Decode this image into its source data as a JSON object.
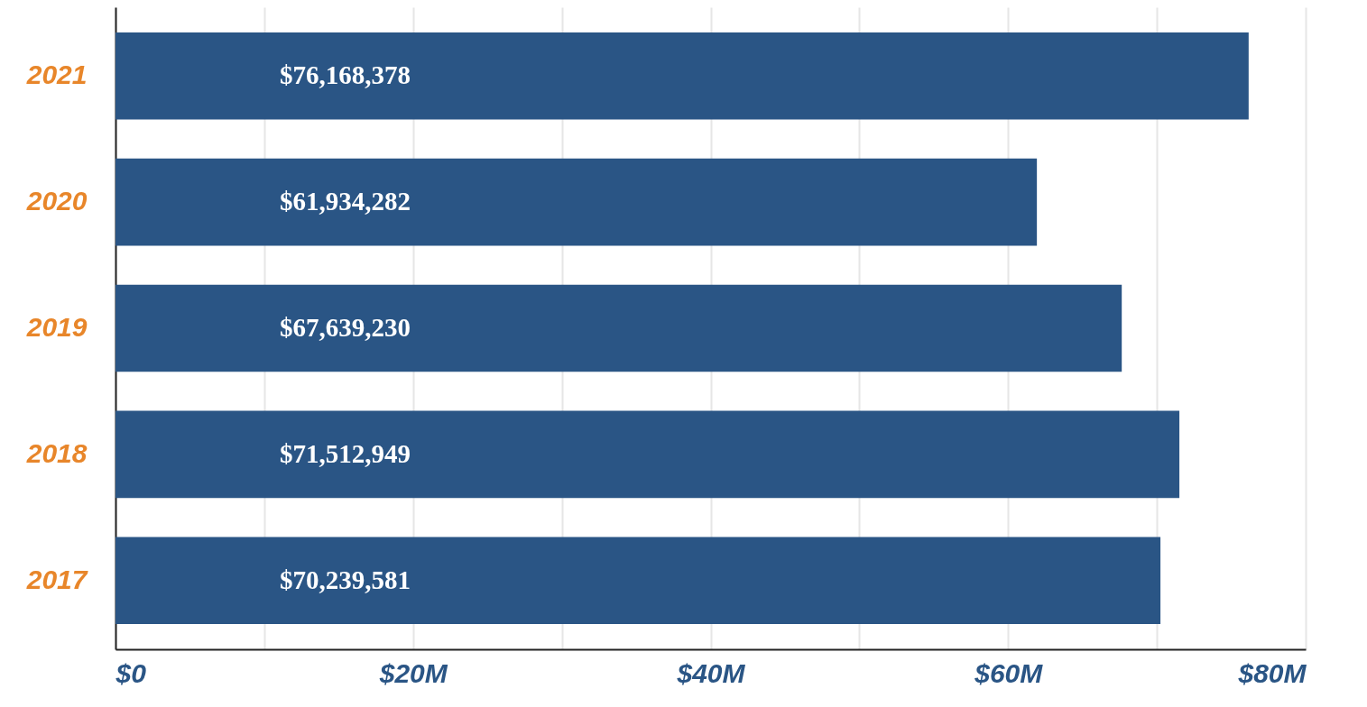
{
  "chart_data": {
    "type": "bar",
    "orientation": "horizontal",
    "categories": [
      "2021",
      "2020",
      "2019",
      "2018",
      "2017"
    ],
    "values": [
      76168378,
      61934282,
      67639230,
      71512949,
      70239581
    ],
    "value_labels": [
      "$76,168,378",
      "$61,934,282",
      "$67,639,230",
      "$71,512,949",
      "$70,239,581"
    ],
    "color": "#2a5585",
    "xlim": [
      0,
      80000000
    ],
    "xticks": [
      {
        "value": 0,
        "label": "$0"
      },
      {
        "value": 10000000,
        "label": null
      },
      {
        "value": 20000000,
        "label": "$20M"
      },
      {
        "value": 30000000,
        "label": null
      },
      {
        "value": 40000000,
        "label": "$40M"
      },
      {
        "value": 50000000,
        "label": null
      },
      {
        "value": 60000000,
        "label": "$60M"
      },
      {
        "value": 70000000,
        "label": null
      },
      {
        "value": 80000000,
        "label": "$80M"
      }
    ],
    "grid": "x"
  }
}
